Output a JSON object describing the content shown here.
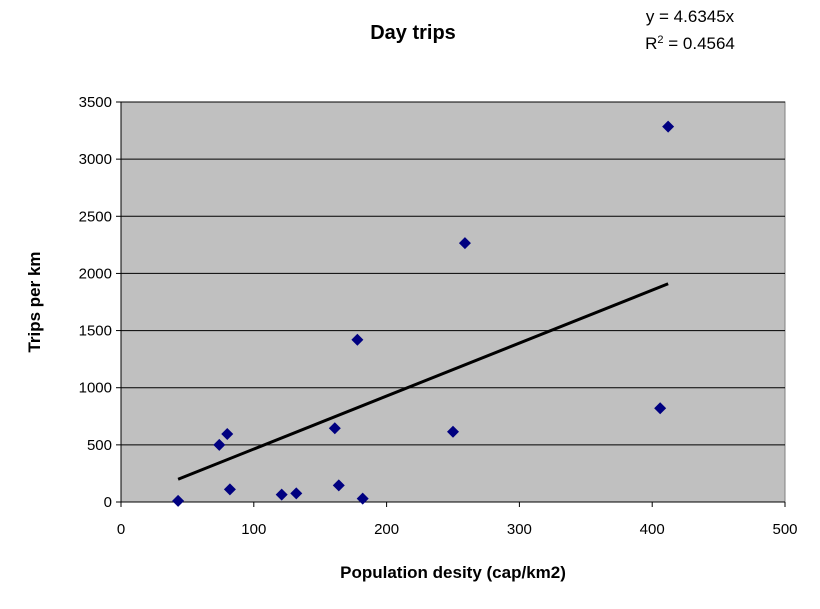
{
  "chart_data": {
    "type": "scatter",
    "title": "Day trips",
    "xlabel": "Population desity (cap/km2)",
    "ylabel": "Trips per km",
    "xlim": [
      0,
      500
    ],
    "ylim": [
      0,
      3500
    ],
    "x_ticks": [
      "0",
      "100",
      "200",
      "300",
      "400",
      "500"
    ],
    "y_ticks": [
      "0",
      "500",
      "1000",
      "1500",
      "2000",
      "2500",
      "3000",
      "3500"
    ],
    "grid": "horizontal",
    "legend": "none",
    "background_color": "#c0c0c0",
    "marker_color": "#000080",
    "trendline": {
      "color": "#000000",
      "slope": 4.6345,
      "x_range": [
        43,
        412
      ],
      "equation": "y = 4.6345x",
      "r2_prefix": "R",
      "r2_sup": "2",
      "r2_suffix": " = 0.4564"
    },
    "points": [
      {
        "x": 43,
        "y": 10
      },
      {
        "x": 74,
        "y": 500
      },
      {
        "x": 80,
        "y": 595
      },
      {
        "x": 82,
        "y": 110
      },
      {
        "x": 121,
        "y": 65
      },
      {
        "x": 132,
        "y": 75
      },
      {
        "x": 161,
        "y": 645
      },
      {
        "x": 164,
        "y": 145
      },
      {
        "x": 178,
        "y": 1420
      },
      {
        "x": 182,
        "y": 30
      },
      {
        "x": 250,
        "y": 615
      },
      {
        "x": 259,
        "y": 2265
      },
      {
        "x": 406,
        "y": 820
      },
      {
        "x": 412,
        "y": 3285
      }
    ]
  }
}
